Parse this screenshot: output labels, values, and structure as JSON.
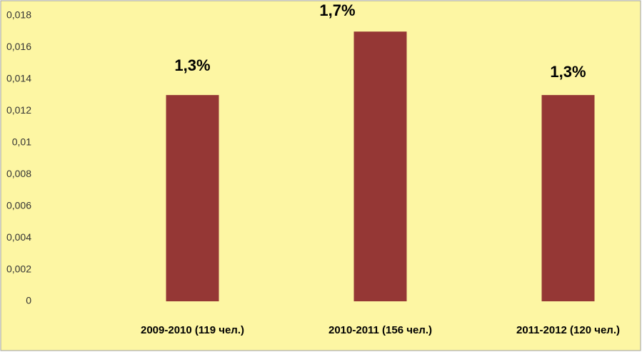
{
  "chart_data": {
    "type": "bar",
    "categories": [
      "2009-2010 (119 чел.)",
      "2010-2011 (156 чел.)",
      "2011-2012 (120 чел.)"
    ],
    "values": [
      0.013,
      0.017,
      0.013
    ],
    "value_labels": [
      "1,3%",
      "1,7%",
      "1,3%"
    ],
    "color": "#953735",
    "ylim": [
      0,
      0.018
    ],
    "yticks": [
      0,
      {
        "value": 0.002,
        "label": "0,002"
      },
      {
        "value": 0.004,
        "label": "0,004"
      },
      {
        "value": 0.006,
        "label": "0,006"
      },
      {
        "value": 0.008,
        "label": "0,008"
      },
      {
        "value": 0.01,
        "label": "0,01"
      },
      {
        "value": 0.012,
        "label": "0,012"
      },
      {
        "value": 0.014,
        "label": "0,014"
      },
      {
        "value": 0.016,
        "label": "0,016"
      },
      {
        "value": 0.018,
        "label": "0,018"
      }
    ],
    "grid": false
  }
}
